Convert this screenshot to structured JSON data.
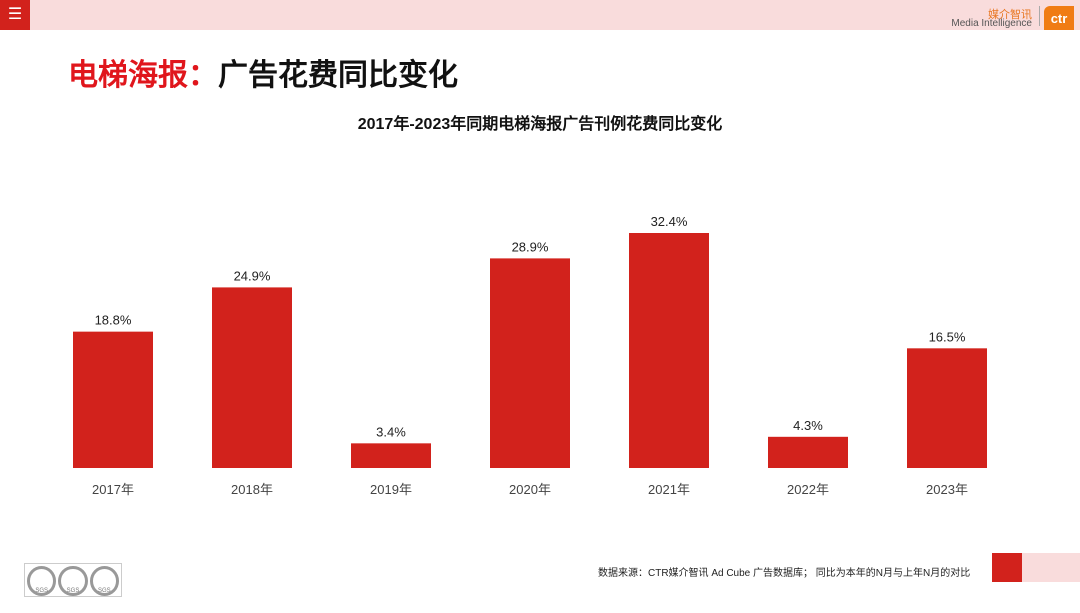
{
  "header": {
    "menu_icon": "hamburger-icon",
    "logo_cn": "媒介智讯",
    "logo_en": "Media Intelligence",
    "logo_mark": "ctr"
  },
  "page_title": {
    "red": "电梯海报：",
    "dark": "广告花费同比变化"
  },
  "colors": {
    "bar": "#d2221c",
    "accent": "#e0161c",
    "band": "#f9dcdc"
  },
  "chart_data": {
    "type": "bar",
    "title": "2017年-2023年同期电梯海报广告刊例花费同比变化",
    "categories": [
      "2017年",
      "2018年",
      "2019年",
      "2020年",
      "2021年",
      "2022年",
      "2023年"
    ],
    "values": [
      18.8,
      24.9,
      3.4,
      28.9,
      32.4,
      4.3,
      16.5
    ],
    "labels": [
      "18.8%",
      "24.9%",
      "3.4%",
      "28.9%",
      "32.4%",
      "4.3%",
      "16.5%"
    ],
    "unit": "%",
    "ylim": [
      0,
      32.4
    ],
    "grid": false,
    "legend": "none"
  },
  "footer": {
    "source": "数据来源：CTR媒介智讯 Ad Cube 广告数据库；  同比为本年的N月与上年N月的对比",
    "badges": [
      "SGS",
      "SGS",
      "SGS"
    ]
  }
}
